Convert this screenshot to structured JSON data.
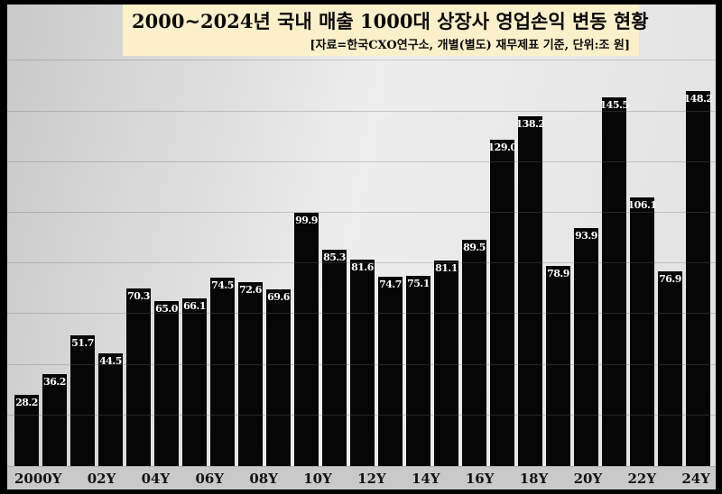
{
  "header": {
    "title": "2000~2024년 국내 매출 1000대 상장사 영업손익 변동 현황",
    "subtitle": "[자료=한국CXO연구소, 개별(별도) 재무제표 기준, 단위:조 원]"
  },
  "chart_data": {
    "type": "bar",
    "title": "2000~2024년 국내 매출 1000대 상장사 영업손익 변동 현황",
    "subtitle": "[자료=한국CXO연구소, 개별(별도) 재무제표 기준, 단위:조 원]",
    "unit": "조 원",
    "categories": [
      2000,
      2001,
      2002,
      2003,
      2004,
      2005,
      2006,
      2007,
      2008,
      2009,
      2010,
      2011,
      2012,
      2013,
      2014,
      2015,
      2016,
      2017,
      2018,
      2019,
      2020,
      2021,
      2022,
      2023,
      2024
    ],
    "values": [
      28.2,
      36.2,
      51.7,
      44.5,
      70.3,
      65.0,
      66.1,
      74.5,
      72.6,
      69.6,
      99.9,
      85.3,
      81.6,
      74.7,
      75.1,
      81.1,
      89.5,
      129.0,
      138.2,
      78.9,
      93.9,
      145.5,
      106.1,
      76.9,
      148.2
    ],
    "x_tick_labels": [
      "2000Y",
      "02Y",
      "04Y",
      "06Y",
      "08Y",
      "10Y",
      "12Y",
      "14Y",
      "16Y",
      "18Y",
      "20Y",
      "22Y",
      "24Y"
    ],
    "ylim": [
      0,
      160
    ],
    "gridline_interval": 20,
    "grid": true,
    "legend": "none",
    "colors": {
      "bar": "#060606",
      "bar_label": "#ffffff",
      "background_light": "#ededed",
      "background_dark": "#c9c9c9",
      "title_box_bg": "#fbf0ca",
      "title_text": "#0a0a0a",
      "axis_strip_bg": "#c9c9c9",
      "frame_border": "#000000"
    }
  }
}
